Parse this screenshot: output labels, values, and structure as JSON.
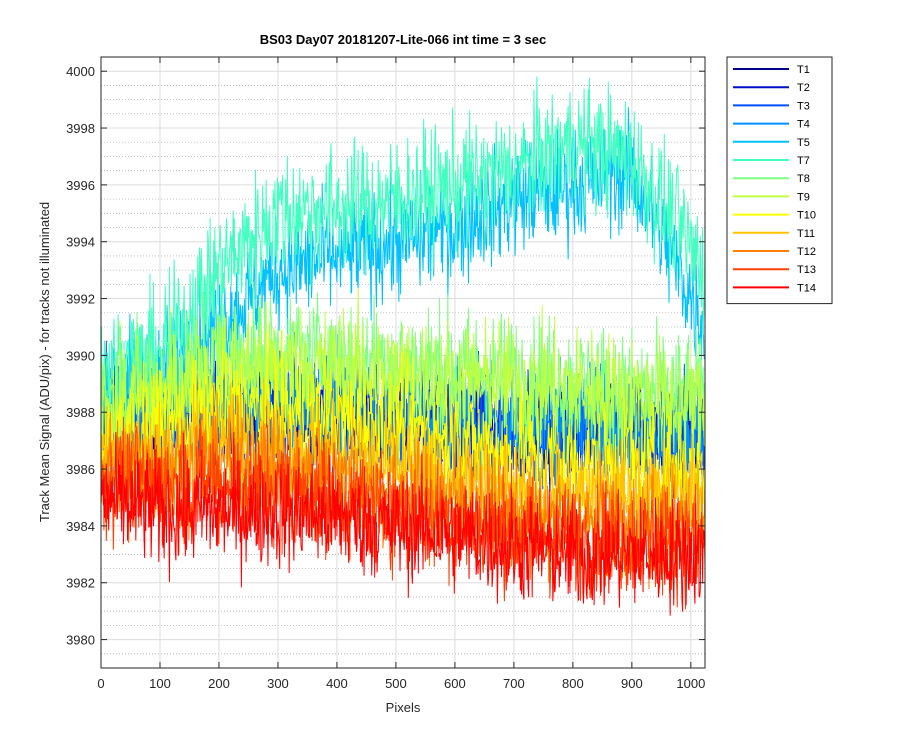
{
  "chart_data": {
    "type": "line",
    "title": "BS03 Day07 20181207-Lite-066 int time = 3 sec",
    "xlabel": "Pixels",
    "ylabel": "Track Mean Signal (ADU/pix) - for tracks not illuminated",
    "xlim": [
      0,
      1024
    ],
    "ylim": [
      3979,
      4000.5
    ],
    "xticks": [
      0,
      100,
      200,
      300,
      400,
      500,
      600,
      700,
      800,
      900,
      1000
    ],
    "yticks": [
      3980,
      3982,
      3984,
      3986,
      3988,
      3990,
      3992,
      3994,
      3996,
      3998,
      4000
    ],
    "grid": true,
    "minor_grid_y": true,
    "legend_position": "outside-right",
    "profile_x": [
      0,
      100,
      200,
      300,
      400,
      500,
      600,
      700,
      800,
      900,
      1024
    ],
    "series": [
      {
        "name": "T1",
        "color": "#00008F",
        "values": [
          3987.5,
          3987.8,
          3988.0,
          3988.0,
          3987.8,
          3987.6,
          3987.4,
          3987.3,
          3987.2,
          3987.2,
          3987.0
        ],
        "noise": 0.9
      },
      {
        "name": "T2",
        "color": "#0010C8",
        "values": [
          3987.6,
          3987.9,
          3988.1,
          3988.1,
          3987.9,
          3987.7,
          3987.5,
          3987.4,
          3987.3,
          3987.3,
          3987.1
        ],
        "noise": 0.9
      },
      {
        "name": "T3",
        "color": "#0050FF",
        "values": [
          3987.7,
          3988.0,
          3988.2,
          3988.2,
          3988.0,
          3987.8,
          3987.6,
          3987.5,
          3987.4,
          3987.4,
          3987.2
        ],
        "noise": 1.0
      },
      {
        "name": "T4",
        "color": "#0090FF",
        "values": [
          3987.8,
          3988.1,
          3988.3,
          3988.3,
          3988.1,
          3987.9,
          3987.7,
          3987.6,
          3987.5,
          3987.5,
          3987.3
        ],
        "noise": 1.0
      },
      {
        "name": "T5",
        "color": "#00C0FF",
        "values": [
          3989.0,
          3989.5,
          3991.0,
          3993.0,
          3993.5,
          3994.0,
          3994.5,
          3995.5,
          3996.0,
          3996.5,
          3991.0
        ],
        "noise": 1.0
      },
      {
        "name": "T7",
        "color": "#40FFC0",
        "values": [
          3989.5,
          3990.0,
          3993.0,
          3995.0,
          3995.2,
          3995.5,
          3996.0,
          3996.5,
          3997.5,
          3997.0,
          3993.0
        ],
        "noise": 1.1
      },
      {
        "name": "T8",
        "color": "#80FF80",
        "values": [
          3988.5,
          3989.0,
          3990.0,
          3990.0,
          3990.0,
          3989.8,
          3989.5,
          3989.3,
          3989.0,
          3988.8,
          3988.5
        ],
        "noise": 1.1
      },
      {
        "name": "T9",
        "color": "#C0FF40",
        "values": [
          3988.0,
          3988.5,
          3989.5,
          3989.5,
          3989.5,
          3989.3,
          3989.0,
          3989.0,
          3988.8,
          3988.5,
          3988.0
        ],
        "noise": 1.1
      },
      {
        "name": "T10",
        "color": "#FFFF00",
        "values": [
          3987.0,
          3987.5,
          3988.0,
          3988.0,
          3987.8,
          3987.5,
          3987.0,
          3986.5,
          3986.3,
          3986.0,
          3986.0
        ],
        "noise": 1.0
      },
      {
        "name": "T11",
        "color": "#FFC000",
        "values": [
          3986.5,
          3986.5,
          3987.0,
          3986.8,
          3986.5,
          3986.0,
          3985.5,
          3985.0,
          3985.0,
          3985.0,
          3985.0
        ],
        "noise": 1.0
      },
      {
        "name": "T12",
        "color": "#FF8000",
        "values": [
          3986.0,
          3986.0,
          3986.3,
          3986.0,
          3985.5,
          3985.0,
          3984.8,
          3984.3,
          3984.0,
          3984.0,
          3984.0
        ],
        "noise": 1.0
      },
      {
        "name": "T13",
        "color": "#FF4000",
        "values": [
          3985.5,
          3985.5,
          3985.5,
          3985.3,
          3985.0,
          3984.5,
          3984.2,
          3983.8,
          3983.5,
          3983.5,
          3983.5
        ],
        "noise": 1.0
      },
      {
        "name": "T14",
        "color": "#FF0000",
        "values": [
          3985.0,
          3984.5,
          3984.5,
          3984.5,
          3984.3,
          3984.0,
          3983.7,
          3983.3,
          3983.0,
          3983.0,
          3983.0
        ],
        "noise": 1.0
      }
    ]
  }
}
